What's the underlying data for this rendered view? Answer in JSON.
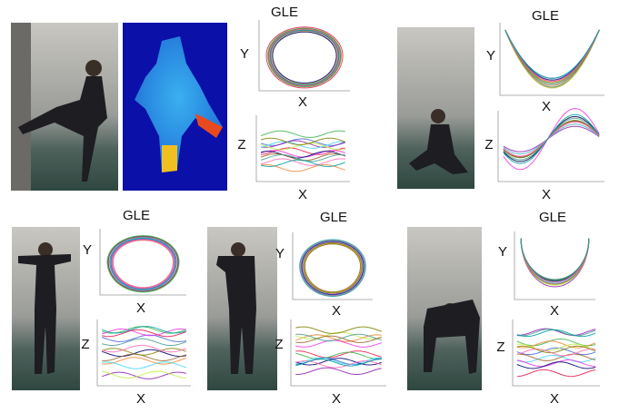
{
  "figure": {
    "panels": [
      {
        "title": "GLE",
        "plots": [
          {
            "y_label": "Y",
            "x_label": "X"
          },
          {
            "y_label": "Z",
            "x_label": "X"
          }
        ]
      },
      {
        "title": "GLE",
        "plots": [
          {
            "y_label": "Y",
            "x_label": "X"
          },
          {
            "y_label": "Z",
            "x_label": "X"
          }
        ]
      },
      {
        "title": "GLE",
        "plots": [
          {
            "y_label": "Y",
            "x_label": "X"
          },
          {
            "y_label": "Z",
            "x_label": "X"
          }
        ]
      },
      {
        "title": "GLE",
        "plots": [
          {
            "y_label": "Y",
            "x_label": "X"
          },
          {
            "y_label": "Z",
            "x_label": "X"
          }
        ]
      },
      {
        "title": "GLE",
        "plots": [
          {
            "y_label": "Y",
            "x_label": "X"
          },
          {
            "y_label": "Z",
            "x_label": "X"
          }
        ]
      }
    ]
  }
}
